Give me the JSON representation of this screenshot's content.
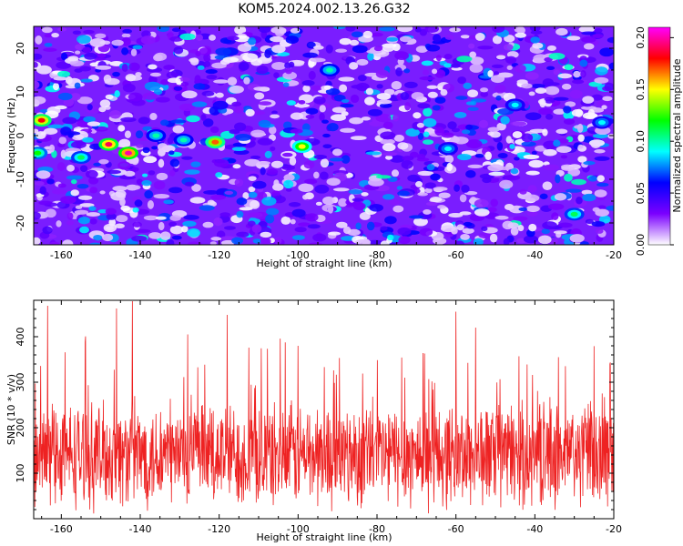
{
  "title": "KOM5.2024.002.13.26.G32",
  "chart_data": [
    {
      "type": "heatmap",
      "xlabel": "Height of straight line (km)",
      "ylabel": "Frequency (Hz)",
      "xlim": [
        -167,
        -20
      ],
      "ylim": [
        -25,
        25
      ],
      "x_ticks": [
        -160,
        -140,
        -120,
        -100,
        -80,
        -60,
        -40,
        -20
      ],
      "y_ticks": [
        -20,
        -10,
        0,
        10,
        20
      ],
      "colorbar": {
        "label": "Normalized spectral amplitude",
        "range": [
          0,
          0.21
        ],
        "ticks": [
          0.0,
          0.05,
          0.1,
          0.15,
          0.2
        ],
        "tick_labels": [
          "0.00",
          "0.05",
          "0.10",
          "0.15",
          "0.20"
        ],
        "colors": [
          "#ffffff",
          "#7b00ff",
          "#0000ff",
          "#00ffff",
          "#00ff00",
          "#ffff00",
          "#ff0000",
          "#ff00ff"
        ]
      },
      "hotspots": [
        {
          "x": -165,
          "y": 3.5,
          "value": 0.18
        },
        {
          "x": -148,
          "y": -2,
          "value": 0.19
        },
        {
          "x": -143,
          "y": -4,
          "value": 0.2
        },
        {
          "x": -121,
          "y": -1.5,
          "value": 0.17
        },
        {
          "x": -99,
          "y": -2.5,
          "value": 0.15
        },
        {
          "x": -166,
          "y": -4,
          "value": 0.12
        },
        {
          "x": -155,
          "y": -5,
          "value": 0.11
        },
        {
          "x": -136,
          "y": 0,
          "value": 0.1
        },
        {
          "x": -129,
          "y": -1,
          "value": 0.1
        },
        {
          "x": -92,
          "y": 15,
          "value": 0.1
        },
        {
          "x": -62,
          "y": -3,
          "value": 0.09
        },
        {
          "x": -45,
          "y": 7,
          "value": 0.09
        },
        {
          "x": -30,
          "y": -18,
          "value": 0.11
        },
        {
          "x": -23,
          "y": 3,
          "value": 0.09
        }
      ]
    },
    {
      "type": "line",
      "xlabel": "Height of straight line (km)",
      "ylabel": "SNR (10 * v/v)",
      "xlim": [
        -167,
        -20
      ],
      "ylim": [
        0,
        480
      ],
      "x_ticks": [
        -160,
        -140,
        -120,
        -100,
        -80,
        -60,
        -40,
        -20
      ],
      "y_ticks": [
        100,
        200,
        300,
        400
      ],
      "series": [
        {
          "color": "#ee2222",
          "baseline": 140,
          "noise_amplitude": 120,
          "peaks": [
            {
              "x": -163.5,
              "y": 468
            },
            {
              "x": -146,
              "y": 462
            },
            {
              "x": -142,
              "y": 478
            },
            {
              "x": -118,
              "y": 448
            },
            {
              "x": -60,
              "y": 455
            },
            {
              "x": -55,
              "y": 420
            },
            {
              "x": -128,
              "y": 405
            },
            {
              "x": -100,
              "y": 380
            },
            {
              "x": -34,
              "y": 355
            },
            {
              "x": -73,
              "y": 310
            },
            {
              "x": -21,
              "y": 340
            }
          ]
        }
      ]
    }
  ]
}
